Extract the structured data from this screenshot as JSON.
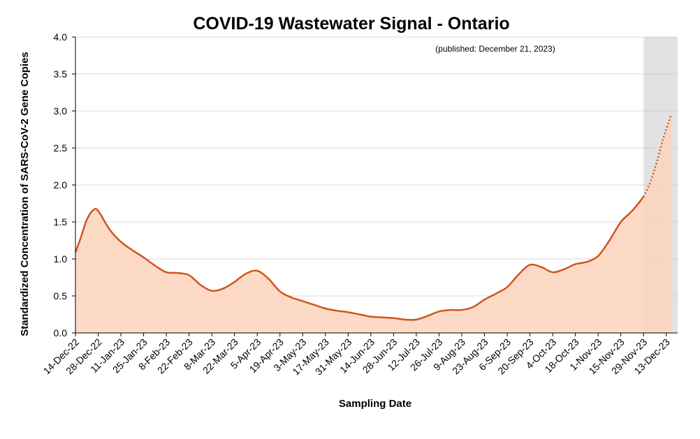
{
  "chart_data": {
    "type": "area",
    "title": "COVID-19 Wastewater Signal - Ontario",
    "annotation": "(published: December 21, 2023)",
    "xlabel": "Sampling Date",
    "ylabel": "Standardized Concentration of SARS-CoV-2 Gene Copies",
    "ylim": [
      0,
      4
    ],
    "yticks": [
      "0.0",
      "0.5",
      "1.0",
      "1.5",
      "2.0",
      "2.5",
      "3.0",
      "3.5",
      "4.0"
    ],
    "grid": true,
    "xtick_labels": [
      "14-Dec-22",
      "28-Dec-22",
      "11-Jan-23",
      "25-Jan-23",
      "8-Feb-23",
      "22-Feb-23",
      "8-Mar-23",
      "22-Mar-23",
      "5-Apr-23",
      "19-Apr-23",
      "3-May-23",
      "17-May-23",
      "31-May-23",
      "14-Jun-23",
      "28-Jun-23",
      "12-Jul-23",
      "26-Jul-23",
      "9-Aug-23",
      "23-Aug-23",
      "6-Sep-23",
      "20-Sep-23",
      "4-Oct-23",
      "18-Oct-23",
      "1-Nov-23",
      "15-Nov-23",
      "29-Nov-23",
      "13-Dec-23"
    ],
    "series": [
      {
        "values": [
          {
            "date": "2022-12-14",
            "y": 1.09
          },
          {
            "date": "2022-12-17",
            "y": 1.27
          },
          {
            "date": "2022-12-21",
            "y": 1.53
          },
          {
            "date": "2022-12-25",
            "y": 1.66
          },
          {
            "date": "2022-12-28",
            "y": 1.65
          },
          {
            "date": "2023-01-04",
            "y": 1.4
          },
          {
            "date": "2023-01-11",
            "y": 1.23
          },
          {
            "date": "2023-01-18",
            "y": 1.12
          },
          {
            "date": "2023-01-25",
            "y": 1.02
          },
          {
            "date": "2023-02-01",
            "y": 0.91
          },
          {
            "date": "2023-02-08",
            "y": 0.82
          },
          {
            "date": "2023-02-15",
            "y": 0.81
          },
          {
            "date": "2023-02-22",
            "y": 0.78
          },
          {
            "date": "2023-03-01",
            "y": 0.65
          },
          {
            "date": "2023-03-08",
            "y": 0.57
          },
          {
            "date": "2023-03-15",
            "y": 0.6
          },
          {
            "date": "2023-03-22",
            "y": 0.69
          },
          {
            "date": "2023-03-29",
            "y": 0.8
          },
          {
            "date": "2023-04-05",
            "y": 0.84
          },
          {
            "date": "2023-04-12",
            "y": 0.73
          },
          {
            "date": "2023-04-19",
            "y": 0.56
          },
          {
            "date": "2023-04-26",
            "y": 0.48
          },
          {
            "date": "2023-05-03",
            "y": 0.43
          },
          {
            "date": "2023-05-10",
            "y": 0.38
          },
          {
            "date": "2023-05-17",
            "y": 0.33
          },
          {
            "date": "2023-05-24",
            "y": 0.3
          },
          {
            "date": "2023-05-31",
            "y": 0.28
          },
          {
            "date": "2023-06-07",
            "y": 0.25
          },
          {
            "date": "2023-06-14",
            "y": 0.22
          },
          {
            "date": "2023-06-21",
            "y": 0.21
          },
          {
            "date": "2023-06-28",
            "y": 0.2
          },
          {
            "date": "2023-07-05",
            "y": 0.18
          },
          {
            "date": "2023-07-12",
            "y": 0.18
          },
          {
            "date": "2023-07-19",
            "y": 0.23
          },
          {
            "date": "2023-07-26",
            "y": 0.29
          },
          {
            "date": "2023-08-02",
            "y": 0.31
          },
          {
            "date": "2023-08-09",
            "y": 0.31
          },
          {
            "date": "2023-08-16",
            "y": 0.35
          },
          {
            "date": "2023-08-23",
            "y": 0.45
          },
          {
            "date": "2023-08-30",
            "y": 0.53
          },
          {
            "date": "2023-09-06",
            "y": 0.62
          },
          {
            "date": "2023-09-13",
            "y": 0.79
          },
          {
            "date": "2023-09-20",
            "y": 0.92
          },
          {
            "date": "2023-09-27",
            "y": 0.89
          },
          {
            "date": "2023-10-04",
            "y": 0.82
          },
          {
            "date": "2023-10-11",
            "y": 0.86
          },
          {
            "date": "2023-10-18",
            "y": 0.93
          },
          {
            "date": "2023-10-25",
            "y": 0.96
          },
          {
            "date": "2023-11-01",
            "y": 1.04
          },
          {
            "date": "2023-11-08",
            "y": 1.25
          },
          {
            "date": "2023-11-15",
            "y": 1.5
          },
          {
            "date": "2023-11-22",
            "y": 1.65
          },
          {
            "date": "2023-11-29",
            "y": 1.84
          }
        ],
        "projected_values": [
          {
            "date": "2023-11-29",
            "y": 1.84
          },
          {
            "date": "2023-12-03",
            "y": 2.03
          },
          {
            "date": "2023-12-07",
            "y": 2.3
          },
          {
            "date": "2023-12-11",
            "y": 2.62
          },
          {
            "date": "2023-12-16",
            "y": 2.95
          }
        ]
      }
    ],
    "shaded_region": {
      "from": "2023-11-29",
      "to": "2023-12-20"
    },
    "colors": {
      "line": "#d0561c",
      "fill": "#fdd4bb",
      "shade": "#bfbfbf",
      "grid": "#d9d9d9",
      "axis": "#000000"
    }
  }
}
